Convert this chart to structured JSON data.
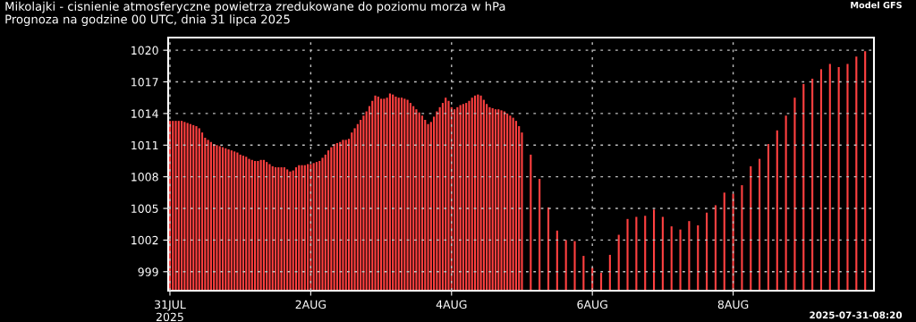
{
  "chart_data": {
    "type": "bar",
    "title": "Mikolajki - cisnienie atmosferyczne powietrza zredukowane do poziomu morza w hPa",
    "subtitle": "Prognoza na godzine 00 UTC, dnia 31 lipca 2025",
    "annotations": [
      "Model GFS",
      "2025-07-31-08:20"
    ],
    "x": [
      "2025-07-31T00:00",
      "2025-07-31T01:00",
      "2025-07-31T02:00",
      "2025-07-31T03:00",
      "2025-07-31T04:00",
      "2025-07-31T05:00",
      "2025-07-31T06:00",
      "2025-07-31T07:00",
      "2025-07-31T08:00",
      "2025-07-31T09:00",
      "2025-07-31T10:00",
      "2025-07-31T11:00",
      "2025-07-31T12:00",
      "2025-07-31T13:00",
      "2025-07-31T14:00",
      "2025-07-31T15:00",
      "2025-07-31T16:00",
      "2025-07-31T17:00",
      "2025-07-31T18:00",
      "2025-07-31T19:00",
      "2025-07-31T20:00",
      "2025-07-31T21:00",
      "2025-07-31T22:00",
      "2025-07-31T23:00",
      "2025-08-01T00:00",
      "2025-08-01T01:00",
      "2025-08-01T02:00",
      "2025-08-01T03:00",
      "2025-08-01T04:00",
      "2025-08-01T05:00",
      "2025-08-01T06:00",
      "2025-08-01T07:00",
      "2025-08-01T08:00",
      "2025-08-01T09:00",
      "2025-08-01T10:00",
      "2025-08-01T11:00",
      "2025-08-01T12:00",
      "2025-08-01T13:00",
      "2025-08-01T14:00",
      "2025-08-01T15:00",
      "2025-08-01T16:00",
      "2025-08-01T17:00",
      "2025-08-01T18:00",
      "2025-08-01T19:00",
      "2025-08-01T20:00",
      "2025-08-01T21:00",
      "2025-08-01T22:00",
      "2025-08-01T23:00",
      "2025-08-02T00:00",
      "2025-08-02T01:00",
      "2025-08-02T02:00",
      "2025-08-02T03:00",
      "2025-08-02T04:00",
      "2025-08-02T05:00",
      "2025-08-02T06:00",
      "2025-08-02T07:00",
      "2025-08-02T08:00",
      "2025-08-02T09:00",
      "2025-08-02T10:00",
      "2025-08-02T11:00",
      "2025-08-02T12:00",
      "2025-08-02T13:00",
      "2025-08-02T14:00",
      "2025-08-02T15:00",
      "2025-08-02T16:00",
      "2025-08-02T17:00",
      "2025-08-02T18:00",
      "2025-08-02T19:00",
      "2025-08-02T20:00",
      "2025-08-02T21:00",
      "2025-08-02T22:00",
      "2025-08-02T23:00",
      "2025-08-03T00:00",
      "2025-08-03T01:00",
      "2025-08-03T02:00",
      "2025-08-03T03:00",
      "2025-08-03T04:00",
      "2025-08-03T05:00",
      "2025-08-03T06:00",
      "2025-08-03T07:00",
      "2025-08-03T08:00",
      "2025-08-03T09:00",
      "2025-08-03T10:00",
      "2025-08-03T11:00",
      "2025-08-03T12:00",
      "2025-08-03T13:00",
      "2025-08-03T14:00",
      "2025-08-03T15:00",
      "2025-08-03T16:00",
      "2025-08-03T17:00",
      "2025-08-03T18:00",
      "2025-08-03T19:00",
      "2025-08-03T20:00",
      "2025-08-03T21:00",
      "2025-08-03T22:00",
      "2025-08-03T23:00",
      "2025-08-04T00:00",
      "2025-08-04T01:00",
      "2025-08-04T02:00",
      "2025-08-04T03:00",
      "2025-08-04T04:00",
      "2025-08-04T05:00",
      "2025-08-04T06:00",
      "2025-08-04T07:00",
      "2025-08-04T08:00",
      "2025-08-04T09:00",
      "2025-08-04T10:00",
      "2025-08-04T11:00",
      "2025-08-04T12:00",
      "2025-08-04T13:00",
      "2025-08-04T14:00",
      "2025-08-04T15:00",
      "2025-08-04T16:00",
      "2025-08-04T17:00",
      "2025-08-04T18:00",
      "2025-08-04T19:00",
      "2025-08-04T20:00",
      "2025-08-04T21:00",
      "2025-08-04T22:00",
      "2025-08-04T23:00",
      "2025-08-05T00:00",
      "2025-08-05T03:00",
      "2025-08-05T06:00",
      "2025-08-05T09:00",
      "2025-08-05T12:00",
      "2025-08-05T15:00",
      "2025-08-05T18:00",
      "2025-08-05T21:00",
      "2025-08-06T00:00",
      "2025-08-06T03:00",
      "2025-08-06T06:00",
      "2025-08-06T09:00",
      "2025-08-06T12:00",
      "2025-08-06T15:00",
      "2025-08-06T18:00",
      "2025-08-06T21:00",
      "2025-08-07T00:00",
      "2025-08-07T03:00",
      "2025-08-07T06:00",
      "2025-08-07T09:00",
      "2025-08-07T12:00",
      "2025-08-07T15:00",
      "2025-08-07T18:00",
      "2025-08-07T21:00",
      "2025-08-08T00:00",
      "2025-08-08T03:00",
      "2025-08-08T06:00",
      "2025-08-08T09:00",
      "2025-08-08T12:00",
      "2025-08-08T15:00",
      "2025-08-08T18:00",
      "2025-08-08T21:00",
      "2025-08-09T00:00",
      "2025-08-09T03:00",
      "2025-08-09T06:00",
      "2025-08-09T09:00",
      "2025-08-09T12:00",
      "2025-08-09T15:00",
      "2025-08-09T18:00",
      "2025-08-09T21:00"
    ],
    "series": [
      {
        "color": "#ff4040",
        "values": [
          1013.3,
          1013.3,
          1013.3,
          1013.3,
          1013.3,
          1013.2,
          1013.1,
          1013.0,
          1012.9,
          1012.8,
          1012.6,
          1012.2,
          1011.7,
          1011.5,
          1011.3,
          1011.1,
          1011.0,
          1010.9,
          1010.8,
          1010.7,
          1010.6,
          1010.5,
          1010.4,
          1010.3,
          1010.1,
          1010.0,
          1009.9,
          1009.7,
          1009.6,
          1009.5,
          1009.5,
          1009.6,
          1009.6,
          1009.4,
          1009.2,
          1009.0,
          1008.9,
          1008.9,
          1008.9,
          1008.9,
          1008.7,
          1008.5,
          1008.6,
          1008.9,
          1009.1,
          1009.1,
          1009.1,
          1009.2,
          1009.2,
          1009.3,
          1009.4,
          1009.5,
          1009.8,
          1010.1,
          1010.5,
          1010.8,
          1011.1,
          1011.2,
          1011.3,
          1011.5,
          1011.5,
          1011.6,
          1012.2,
          1012.6,
          1013.0,
          1013.4,
          1013.8,
          1014.2,
          1014.7,
          1015.2,
          1015.7,
          1015.6,
          1015.4,
          1015.4,
          1015.5,
          1015.9,
          1015.8,
          1015.6,
          1015.5,
          1015.5,
          1015.4,
          1015.3,
          1015.0,
          1014.7,
          1014.4,
          1014.1,
          1013.8,
          1013.4,
          1013.0,
          1013.2,
          1013.7,
          1014.2,
          1014.6,
          1015.0,
          1015.5,
          1015.2,
          1014.6,
          1014.4,
          1014.6,
          1014.8,
          1014.9,
          1015.0,
          1015.2,
          1015.5,
          1015.7,
          1015.8,
          1015.7,
          1015.3,
          1014.9,
          1014.6,
          1014.5,
          1014.4,
          1014.4,
          1014.3,
          1014.2,
          1014.0,
          1013.8,
          1013.6,
          1013.3,
          1012.8,
          1012.2,
          1010.1,
          1007.8,
          1005.1,
          1002.9,
          1002.0,
          1001.9,
          1000.5,
          999.4,
          998.9,
          1000.6,
          1002.5,
          1004.0,
          1004.2,
          1004.3,
          1004.9,
          1004.2,
          1003.3,
          1003.0,
          1003.8,
          1003.4,
          1004.6,
          1005.3,
          1006.5,
          1006.4,
          1007.2,
          1009.0,
          1009.7,
          1011.1,
          1012.4,
          1013.8,
          1015.5,
          1016.8,
          1017.3,
          1018.2,
          1018.7,
          1018.4,
          1018.7,
          1019.4,
          1019.9
        ]
      }
    ],
    "xlim": [
      "2025-07-30T23:24",
      "2025-08-10T00:00"
    ],
    "xticks": [
      {
        "value": "2025-07-31",
        "label": "31JUL\n2025"
      },
      {
        "value": "2025-08-02",
        "label": "2AUG"
      },
      {
        "value": "2025-08-04",
        "label": "4AUG"
      },
      {
        "value": "2025-08-06",
        "label": "6AUG"
      },
      {
        "value": "2025-08-08",
        "label": "8AUG"
      }
    ],
    "ylim": [
      997.2,
      1021.2
    ],
    "yticks": [
      999,
      1002,
      1005,
      1008,
      1011,
      1014,
      1017,
      1020
    ],
    "grid": true
  }
}
